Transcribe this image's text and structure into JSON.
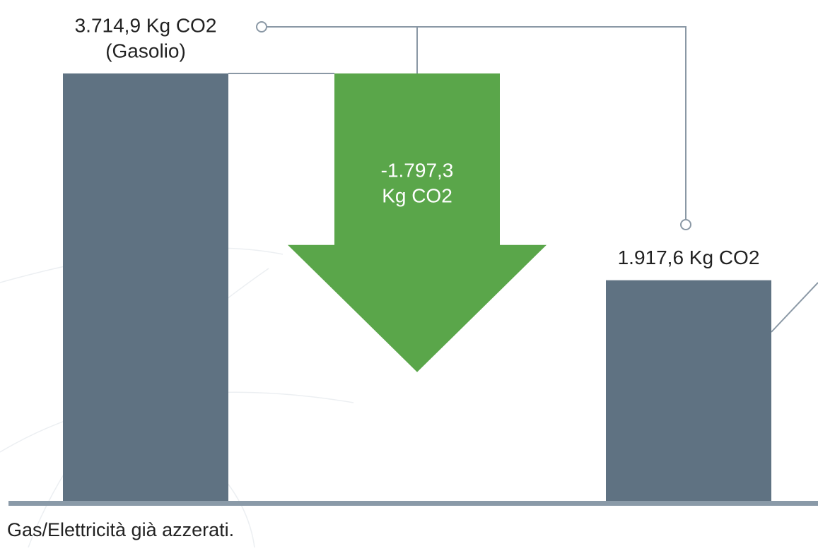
{
  "chart_data": {
    "type": "waterfall",
    "values": [
      3714.9,
      -1797.3,
      1917.6
    ],
    "value_labels": [
      [
        "3.714,9 Kg CO2",
        "(Gasolio)"
      ],
      [
        "-1.797,3",
        "Kg CO2"
      ],
      [
        "1.917,6 Kg CO2"
      ]
    ],
    "colors": [
      "#5f7282",
      "#5aa64a",
      "#5f7282"
    ],
    "note": "Gas/Elettricità già azzerati."
  }
}
